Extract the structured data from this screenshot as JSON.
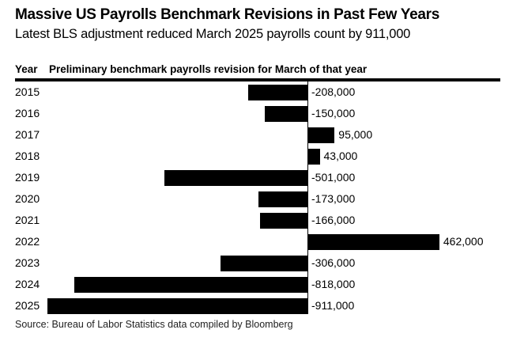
{
  "page": {
    "background_color": "#ffffff",
    "text_color": "#000000"
  },
  "header": {
    "title": "Massive US Payrolls Benchmark Revisions in Past Few Years",
    "subtitle": "Latest BLS adjustment reduced March 2025 payrolls count by 911,000"
  },
  "table_header": {
    "year_label": "Year",
    "value_label": "Preliminary benchmark payrolls revision for March of that year"
  },
  "source_note": "Source: Bureau of Labor Statistics data compiled by Bloomberg",
  "chart_data": {
    "type": "bar",
    "orientation": "horizontal",
    "title": "Massive US Payrolls Benchmark Revisions in Past Few Years",
    "subtitle": "Latest BLS adjustment reduced March 2025 payrolls count by 911,000",
    "categories": [
      "2015",
      "2016",
      "2017",
      "2018",
      "2019",
      "2020",
      "2021",
      "2022",
      "2023",
      "2024",
      "2025"
    ],
    "values": [
      -208000,
      -150000,
      95000,
      43000,
      -501000,
      -173000,
      -166000,
      462000,
      -306000,
      -818000,
      -911000
    ],
    "value_labels": [
      "-208,000",
      "-150,000",
      "95,000",
      "43,000",
      "-501,000",
      "-173,000",
      "-166,000",
      "462,000",
      "-306,000",
      "-818,000",
      "-911,000"
    ],
    "xlabel": "Preliminary benchmark payrolls revision for March of that year",
    "ylabel": "Year",
    "xlim": [
      -911000,
      462000
    ],
    "grid": false,
    "legend": false,
    "bar_color": "#000000",
    "zero_axis_color": "#000000",
    "source": "Source: Bureau of Labor Statistics data compiled by Bloomberg"
  }
}
